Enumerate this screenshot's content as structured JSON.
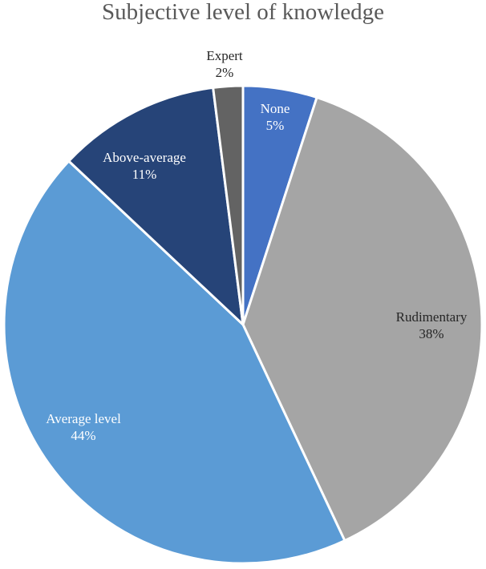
{
  "chart_data": {
    "type": "pie",
    "title": "Subjective level of knowledge",
    "start_angle_deg": 0,
    "direction": "clockwise",
    "slices": [
      {
        "category": "None",
        "value_label": "5%",
        "value": 5,
        "color": "#4472C4",
        "label_color": "#ffffff"
      },
      {
        "category": "Rudimentary",
        "value_label": "38%",
        "value": 38,
        "color": "#A5A5A5",
        "label_color": "#262626"
      },
      {
        "category": "Average level",
        "value_label": "44%",
        "value": 44,
        "color": "#5B9BD5",
        "label_color": "#ffffff"
      },
      {
        "category": "Above-average",
        "value_label": "11%",
        "value": 11,
        "color": "#264478",
        "label_color": "#ffffff"
      },
      {
        "category": "Expert",
        "value_label": "2%",
        "value": 2,
        "color": "#636363",
        "label_color": "#262626"
      }
    ],
    "legend": "none"
  }
}
